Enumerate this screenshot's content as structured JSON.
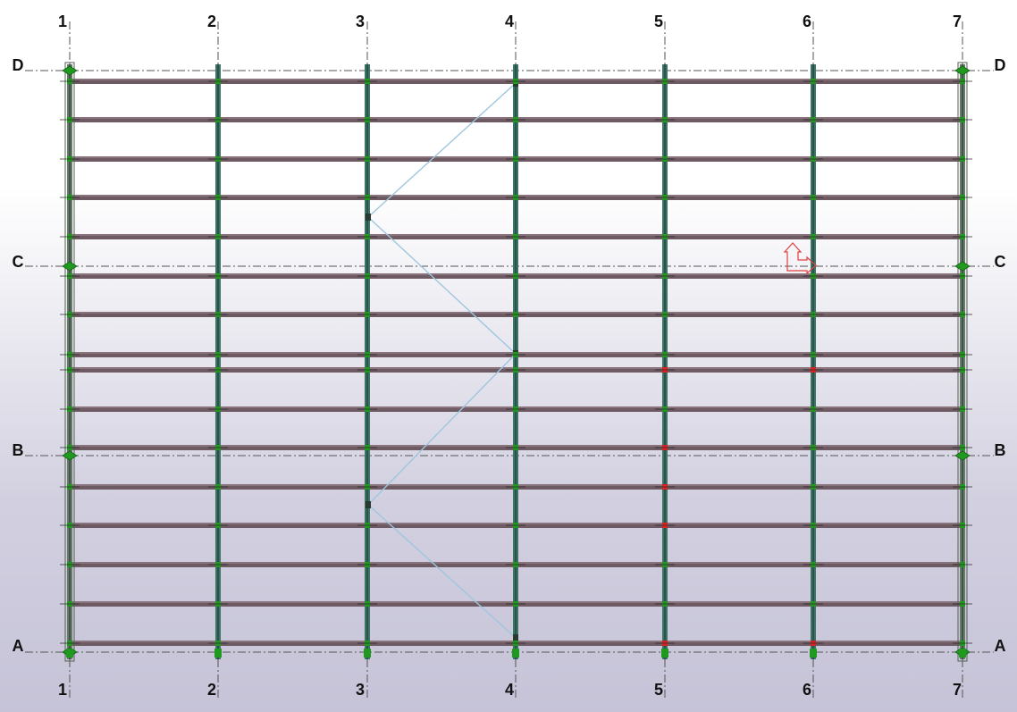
{
  "view": {
    "grid_columns": [
      "1",
      "2",
      "3",
      "4",
      "5",
      "6",
      "7"
    ],
    "grid_rows": [
      "D",
      "C",
      "B",
      "A"
    ],
    "colors": {
      "beam": "#6e5a62",
      "beam_highlight": "#a48f98",
      "column": "#3d7467",
      "column_dark": "#1f3f37",
      "edge_column": "#6b7a6a",
      "brace": "#9ec6df",
      "node": "#1f9a1f",
      "node_warning": "#e02020",
      "grid_line": "#555555",
      "ucs_symbol": "#e04040"
    },
    "icons": [
      "ucs-coordinate-icon"
    ]
  }
}
